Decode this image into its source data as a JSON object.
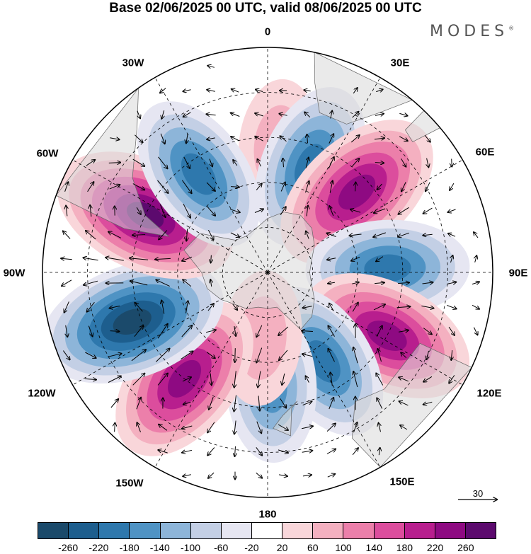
{
  "title": "Base 02/06/2025 00 UTC, valid 08/06/2025 00 UTC",
  "logo": {
    "text": "MODES",
    "mark": "®"
  },
  "longitude_labels": {
    "lon_0": "0",
    "lon_30e": "30E",
    "lon_60e": "60E",
    "lon_90e": "90E",
    "lon_120e": "120E",
    "lon_150e": "150E",
    "lon_180": "180",
    "lon_150w": "150W",
    "lon_120w": "120W",
    "lon_90w": "90W",
    "lon_60w": "60W",
    "lon_30w": "30W"
  },
  "reference_vector": {
    "label": "30"
  },
  "colorbar": {
    "ticks": [
      "-260",
      "-220",
      "-180",
      "-140",
      "-100",
      "-60",
      "-20",
      "20",
      "60",
      "100",
      "140",
      "180",
      "220",
      "260"
    ],
    "colors": [
      "#1b4a6b",
      "#1d5e8e",
      "#2e78ad",
      "#4f93c4",
      "#8db5d9",
      "#c3cfe5",
      "#e6e6f2",
      "#ffffff",
      "#f9d6da",
      "#f4b0c0",
      "#ec7faa",
      "#dc4d9d",
      "#b81e8e",
      "#8e0a82",
      "#5c0a6e"
    ]
  },
  "anomaly_centers": [
    {
      "lon": 5,
      "lat": -48,
      "value": 70
    },
    {
      "lon": 22,
      "lat": -52,
      "value": -180
    },
    {
      "lon": 48,
      "lat": -50,
      "value": 230
    },
    {
      "lon": 88,
      "lat": -50,
      "value": -170
    },
    {
      "lon": 118,
      "lat": -45,
      "value": 220
    },
    {
      "lon": 148,
      "lat": -55,
      "value": -170
    },
    {
      "lon": 178,
      "lat": -52,
      "value": -130
    },
    {
      "lon": 185,
      "lat": -68,
      "value": 70
    },
    {
      "lon": 218,
      "lat": -45,
      "value": 220
    },
    {
      "lon": 250,
      "lat": -42,
      "value": -260
    },
    {
      "lon": 295,
      "lat": -45,
      "value": 250
    },
    {
      "lon": 325,
      "lat": -50,
      "value": -170
    }
  ]
}
